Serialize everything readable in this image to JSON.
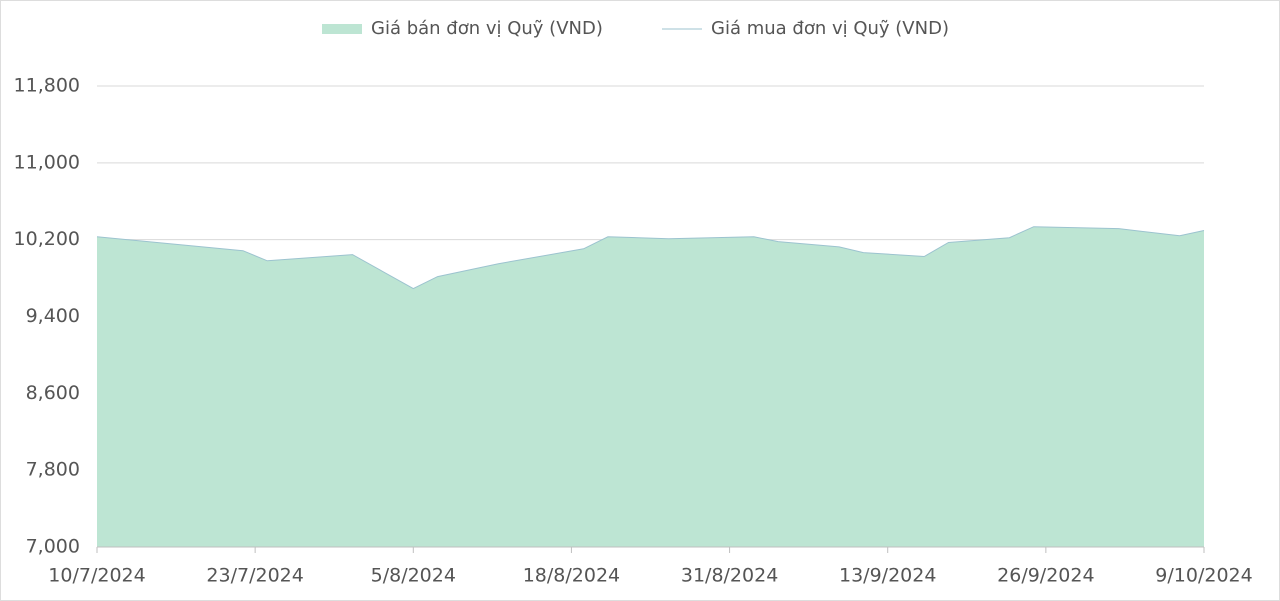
{
  "chart_data": {
    "type": "area",
    "x": [
      "10/7/2024",
      "22/7/2024",
      "24/7/2024",
      "31/7/2024",
      "5/8/2024",
      "7/8/2024",
      "12/8/2024",
      "19/8/2024",
      "21/8/2024",
      "26/8/2024",
      "2/9/2024",
      "4/9/2024",
      "9/9/2024",
      "11/9/2024",
      "16/9/2024",
      "18/9/2024",
      "23/9/2024",
      "25/9/2024",
      "2/10/2024",
      "7/10/2024",
      "9/10/2024"
    ],
    "series": [
      {
        "name": "Giá bán đơn vị Quỹ (VND)",
        "kind": "area",
        "color": "#bde5d3",
        "values": [
          10230,
          10085,
          9980,
          10045,
          9690,
          9815,
          9950,
          10105,
          10230,
          10210,
          10230,
          10180,
          10125,
          10065,
          10025,
          10170,
          10220,
          10335,
          10315,
          10240,
          10295
        ]
      },
      {
        "name": "Giá mua đơn vị Quỹ (VND)",
        "kind": "line",
        "color": "#9cc3cf",
        "values": [
          10230,
          10085,
          9980,
          10045,
          9690,
          9815,
          9950,
          10105,
          10230,
          10210,
          10230,
          10180,
          10125,
          10065,
          10025,
          10170,
          10220,
          10335,
          10315,
          10240,
          10295
        ]
      }
    ],
    "xlim": [
      "10/7/2024",
      "9/10/2024"
    ],
    "xticks": [
      "10/7/2024",
      "23/7/2024",
      "5/8/2024",
      "18/8/2024",
      "31/8/2024",
      "13/9/2024",
      "26/9/2024",
      "9/10/2024"
    ],
    "ylim": [
      7000,
      11800
    ],
    "yticks": [
      {
        "value": 7000,
        "label": "7,000"
      },
      {
        "value": 7800,
        "label": "7,800"
      },
      {
        "value": 8600,
        "label": "8,600"
      },
      {
        "value": 9400,
        "label": "9,400"
      },
      {
        "value": 10200,
        "label": "10,200"
      },
      {
        "value": 11000,
        "label": "11,000"
      },
      {
        "value": 11800,
        "label": "11,800"
      }
    ],
    "grid": true,
    "legend": "top"
  }
}
